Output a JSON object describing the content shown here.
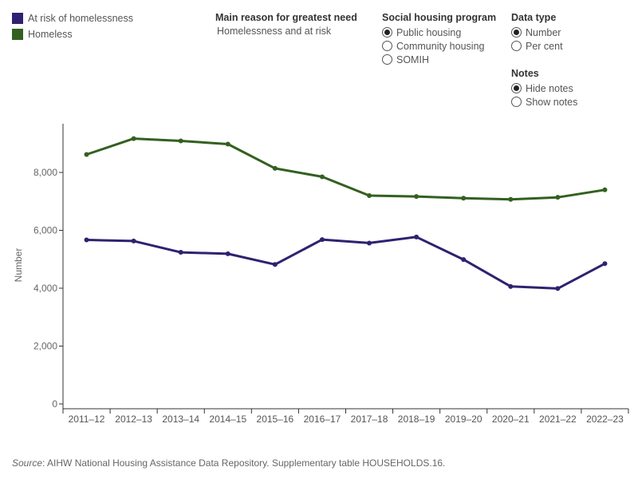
{
  "legend": [
    {
      "label": "At risk of homelessness",
      "color": "#2e2270"
    },
    {
      "label": "Homeless",
      "color": "#336020"
    }
  ],
  "controls": {
    "reason": {
      "heading": "Main reason for greatest need",
      "value": "Homelessness and at risk"
    },
    "program": {
      "heading": "Social housing program",
      "options": [
        "Public housing",
        "Community housing",
        "SOMIH"
      ],
      "selected": 0
    },
    "datatype": {
      "heading": "Data type",
      "options": [
        "Number",
        "Per cent"
      ],
      "selected": 0
    },
    "notes": {
      "heading": "Notes",
      "options": [
        "Hide notes",
        "Show notes"
      ],
      "selected": 0
    }
  },
  "chart_data": {
    "type": "line",
    "categories": [
      "2011–12",
      "2012–13",
      "2013–14",
      "2014–15",
      "2015–16",
      "2016–17",
      "2017–18",
      "2018–19",
      "2019–20",
      "2020–21",
      "2021–22",
      "2022–23"
    ],
    "series": [
      {
        "name": "At risk of homelessness",
        "color": "#2e2270",
        "values": [
          5670,
          5630,
          5240,
          5190,
          4820,
          5680,
          5560,
          5770,
          4990,
          4060,
          3990,
          4850
        ]
      },
      {
        "name": "Homeless",
        "color": "#336020",
        "values": [
          8620,
          9170,
          9090,
          8980,
          8140,
          7850,
          7200,
          7170,
          7110,
          7070,
          7140,
          7400
        ]
      }
    ],
    "ylabel": "Number",
    "ylim": [
      0,
      9500
    ],
    "yticks": [
      0,
      2000,
      4000,
      6000,
      8000
    ],
    "ytick_labels": [
      "0",
      "2,000",
      "4,000",
      "6,000",
      "8,000"
    ],
    "grid": false
  },
  "source": {
    "label": "Source",
    "text": ": AIHW National Housing Assistance Data Repository. Supplementary table HOUSEHOLDS.16."
  }
}
